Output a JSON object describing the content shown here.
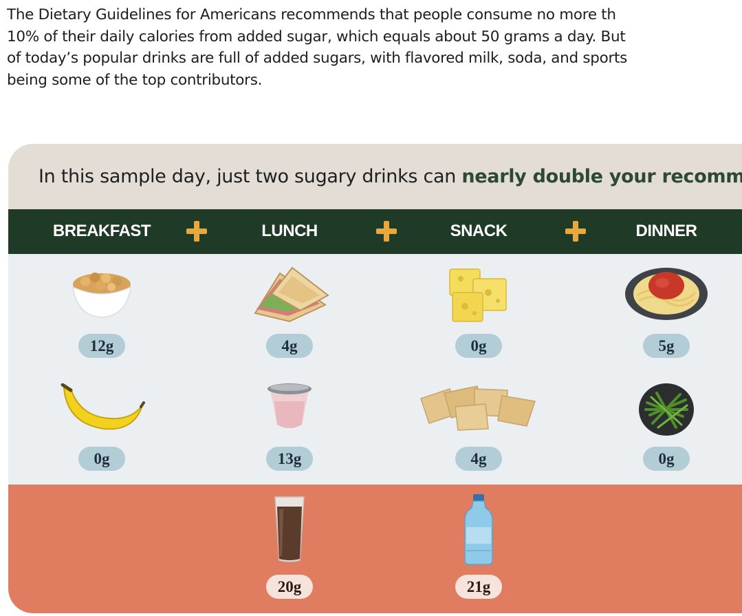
{
  "intro": {
    "lines": [
      "The Dietary Guidelines for Americans recommends that people consume no more th",
      "10% of their daily calories from added sugar, which equals about 50 grams a day. But",
      "of today’s popular drinks are full of added sugars, with flavored milk, soda, and sports",
      "being some of the top contributors."
    ]
  },
  "headline": {
    "prefix": "In this sample day, just two sugary drinks can ",
    "emphasis": "nearly double your recomm"
  },
  "meals": [
    "BREAKFAST",
    "LUNCH",
    "SNACK",
    "DINNER"
  ],
  "colors": {
    "accent_green": "#1f3a26",
    "plus_gold": "#e8a93c",
    "drinks_band": "#e07d60",
    "pill_blue": "#b3cdd7"
  },
  "foods": {
    "row1": [
      {
        "name": "cereal-bowl-icon",
        "sugar": "12g"
      },
      {
        "name": "sandwich-icon",
        "sugar": "4g"
      },
      {
        "name": "cheese-icon",
        "sugar": "0g"
      },
      {
        "name": "spaghetti-icon",
        "sugar": "5g"
      }
    ],
    "row2": [
      {
        "name": "banana-icon",
        "sugar": "0g"
      },
      {
        "name": "yogurt-cup-icon",
        "sugar": "13g"
      },
      {
        "name": "crackers-icon",
        "sugar": "4g"
      },
      {
        "name": "green-beans-icon",
        "sugar": "0g"
      }
    ]
  },
  "drinks": [
    {
      "name": "chocolate-milk-icon",
      "sugar": "20g"
    },
    {
      "name": "sports-drink-bottle-icon",
      "sugar": "21g"
    }
  ]
}
